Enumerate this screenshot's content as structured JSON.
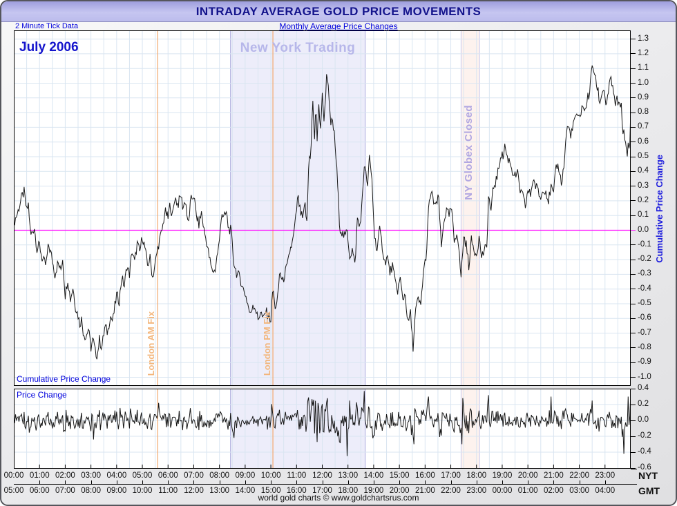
{
  "window": {
    "title": "INTRADAY AVERAGE GOLD PRICE MOVEMENTS",
    "tick_note": "2 Minute Tick Data",
    "subtitle": "Monthly Average Price Changes",
    "footer": "world gold charts © www.goldchartsrus.com"
  },
  "labels": {
    "month": "July 2006",
    "ny_trading": "New York Trading",
    "globex_closed": "NY Globex Closed",
    "london_am_fix": "London AM Fix",
    "london_pm_fix": "London PM Fix",
    "nyt": "NYT",
    "gmt": "GMT"
  },
  "colors": {
    "navy_title": "#14148c",
    "accent_blue": "#0000dd",
    "magenta_zero": "#ff00ff",
    "orange_fix": "#f2a96e",
    "band_lavender": "#ededfa",
    "band_lavender_border": "#a9a9dd",
    "band_pink": "#fdf2ee",
    "band_pink_border": "#c9c9ee",
    "grid": "#d9e5f1",
    "series": "#161616"
  },
  "chart_data": {
    "type": "line",
    "title": "INTRADAY AVERAGE GOLD PRICE MOVEMENTS",
    "subtitle": "Monthly Average Price Changes",
    "month": "July 2006",
    "tick_minutes": 2,
    "noise_amplitude": 0.035,
    "x_axis": {
      "range_hours": [
        0,
        24
      ],
      "grid_interval_minutes": 30,
      "tick_interval_minutes": 60,
      "labels_nyt": [
        "00:00",
        "01:00",
        "02:00",
        "03:00",
        "04:00",
        "05:00",
        "06:00",
        "07:00",
        "08:00",
        "09:00",
        "10:00",
        "11:00",
        "12:00",
        "13:00",
        "14:00",
        "15:00",
        "16:00",
        "17:00",
        "18:00",
        "19:00",
        "20:00",
        "21:00",
        "22:00",
        "23:00"
      ],
      "labels_gmt": [
        "05:00",
        "06:00",
        "07:00",
        "08:00",
        "09:00",
        "10:00",
        "11:00",
        "12:00",
        "13:00",
        "14:00",
        "15:00",
        "16:00",
        "17:00",
        "18:00",
        "19:00",
        "20:00",
        "21:00",
        "22:00",
        "23:00",
        "00:00",
        "01:00",
        "02:00",
        "03:00",
        "04:00"
      ]
    },
    "annotations": {
      "ny_trading_hours": [
        8.43,
        13.67
      ],
      "globex_closed_hours": [
        17.4,
        18.12
      ],
      "london_am_fix_hour": 5.6,
      "london_pm_fix_hour": 10.08
    },
    "upper_panel": {
      "name": "Cumulative Price Change",
      "ylim": [
        -1.06,
        1.36
      ],
      "yticks": [
        1.3,
        1.2,
        1.1,
        1.0,
        0.9,
        0.8,
        0.7,
        0.6,
        0.5,
        0.4,
        0.3,
        0.2,
        0.1,
        0.0,
        -0.1,
        -0.2,
        -0.3,
        -0.4,
        -0.5,
        -0.6,
        -0.7,
        -0.8,
        -0.9,
        -1.0
      ],
      "zero_line": 0.0,
      "keypoints": [
        [
          0,
          0.05
        ],
        [
          0.15,
          0.12
        ],
        [
          0.3,
          0.22
        ],
        [
          0.4,
          0.26
        ],
        [
          0.5,
          0.13
        ],
        [
          0.57,
          0.18
        ],
        [
          0.65,
          -0.04
        ],
        [
          0.8,
          0.02
        ],
        [
          0.9,
          -0.13
        ],
        [
          1.0,
          -0.1
        ],
        [
          1.1,
          -0.19
        ],
        [
          1.25,
          -0.24
        ],
        [
          1.35,
          -0.1
        ],
        [
          1.45,
          -0.16
        ],
        [
          1.6,
          -0.3
        ],
        [
          1.72,
          -0.22
        ],
        [
          1.82,
          -0.28
        ],
        [
          1.9,
          -0.19
        ],
        [
          2.0,
          -0.44
        ],
        [
          2.1,
          -0.33
        ],
        [
          2.2,
          -0.47
        ],
        [
          2.3,
          -0.39
        ],
        [
          2.4,
          -0.52
        ],
        [
          2.5,
          -0.58
        ],
        [
          2.57,
          -0.64
        ],
        [
          2.63,
          -0.6
        ],
        [
          2.7,
          -0.69
        ],
        [
          2.8,
          -0.73
        ],
        [
          2.9,
          -0.67
        ],
        [
          3.0,
          -0.8
        ],
        [
          3.08,
          -0.74
        ],
        [
          3.17,
          -0.83
        ],
        [
          3.25,
          -0.85
        ],
        [
          3.33,
          -0.74
        ],
        [
          3.42,
          -0.8
        ],
        [
          3.55,
          -0.65
        ],
        [
          3.65,
          -0.7
        ],
        [
          3.75,
          -0.58
        ],
        [
          3.85,
          -0.62
        ],
        [
          3.93,
          -0.52
        ],
        [
          4.0,
          -0.44
        ],
        [
          4.1,
          -0.48
        ],
        [
          4.2,
          -0.32
        ],
        [
          4.3,
          -0.38
        ],
        [
          4.4,
          -0.24
        ],
        [
          4.5,
          -0.3
        ],
        [
          4.6,
          -0.14
        ],
        [
          4.7,
          -0.22
        ],
        [
          4.8,
          -0.09
        ],
        [
          4.9,
          -0.15
        ],
        [
          5.0,
          -0.04
        ],
        [
          5.1,
          -0.12
        ],
        [
          5.2,
          -0.24
        ],
        [
          5.3,
          -0.19
        ],
        [
          5.4,
          -0.32
        ],
        [
          5.5,
          -0.23
        ],
        [
          5.6,
          -0.12
        ],
        [
          5.7,
          -0.05
        ],
        [
          5.78,
          0.01
        ],
        [
          5.88,
          0.13
        ],
        [
          6.0,
          0.08
        ],
        [
          6.08,
          0.18
        ],
        [
          6.17,
          0.09
        ],
        [
          6.27,
          0.23
        ],
        [
          6.38,
          0.17
        ],
        [
          6.5,
          0.24
        ],
        [
          6.58,
          0.15
        ],
        [
          6.68,
          0.21
        ],
        [
          6.78,
          0.02
        ],
        [
          6.88,
          0.2
        ],
        [
          7.0,
          0.24
        ],
        [
          7.1,
          0.1
        ],
        [
          7.2,
          0.04
        ],
        [
          7.3,
          0.12
        ],
        [
          7.4,
          0.0
        ],
        [
          7.5,
          -0.08
        ],
        [
          7.6,
          -0.18
        ],
        [
          7.7,
          -0.27
        ],
        [
          7.82,
          -0.28
        ],
        [
          7.92,
          -0.16
        ],
        [
          8.0,
          -0.08
        ],
        [
          8.08,
          0.13
        ],
        [
          8.17,
          0.08
        ],
        [
          8.27,
          0.12
        ],
        [
          8.35,
          0.01
        ],
        [
          8.45,
          0.0
        ],
        [
          8.55,
          -0.21
        ],
        [
          8.68,
          -0.3
        ],
        [
          8.8,
          -0.32
        ],
        [
          8.9,
          -0.39
        ],
        [
          9.0,
          -0.43
        ],
        [
          9.1,
          -0.5
        ],
        [
          9.2,
          -0.58
        ],
        [
          9.3,
          -0.5
        ],
        [
          9.4,
          -0.53
        ],
        [
          9.5,
          -0.61
        ],
        [
          9.6,
          -0.55
        ],
        [
          9.7,
          -0.61
        ],
        [
          9.8,
          -0.55
        ],
        [
          9.9,
          -0.58
        ],
        [
          10.0,
          -0.61
        ],
        [
          10.08,
          -0.38
        ],
        [
          10.15,
          -0.52
        ],
        [
          10.25,
          -0.5
        ],
        [
          10.35,
          -0.27
        ],
        [
          10.45,
          -0.36
        ],
        [
          10.55,
          -0.29
        ],
        [
          10.65,
          -0.24
        ],
        [
          10.75,
          -0.13
        ],
        [
          10.85,
          -0.08
        ],
        [
          10.95,
          0.05
        ],
        [
          11.05,
          0.23
        ],
        [
          11.15,
          0.12
        ],
        [
          11.25,
          0.07
        ],
        [
          11.33,
          0.18
        ],
        [
          11.4,
          0.04
        ],
        [
          11.48,
          0.49
        ],
        [
          11.55,
          0.52
        ],
        [
          11.63,
          0.88
        ],
        [
          11.7,
          0.6
        ],
        [
          11.75,
          0.89
        ],
        [
          11.8,
          0.61
        ],
        [
          11.87,
          0.85
        ],
        [
          11.93,
          0.69
        ],
        [
          12.0,
          0.91
        ],
        [
          12.08,
          0.74
        ],
        [
          12.18,
          1.11
        ],
        [
          12.25,
          0.91
        ],
        [
          12.32,
          0.72
        ],
        [
          12.4,
          0.74
        ],
        [
          12.48,
          0.63
        ],
        [
          12.58,
          0.37
        ],
        [
          12.68,
          0.02
        ],
        [
          12.78,
          -0.02
        ],
        [
          12.88,
          -0.05
        ],
        [
          12.97,
          0.0
        ],
        [
          13.07,
          -0.18
        ],
        [
          13.17,
          -0.13
        ],
        [
          13.27,
          -0.24
        ],
        [
          13.37,
          0.09
        ],
        [
          13.45,
          0.01
        ],
        [
          13.55,
          0.18
        ],
        [
          13.65,
          0.49
        ],
        [
          13.75,
          0.27
        ],
        [
          13.83,
          0.49
        ],
        [
          13.93,
          0.35
        ],
        [
          14.03,
          -0.04
        ],
        [
          14.13,
          -0.13
        ],
        [
          14.23,
          0.0
        ],
        [
          14.33,
          -0.1
        ],
        [
          14.43,
          -0.22
        ],
        [
          14.53,
          -0.18
        ],
        [
          14.63,
          -0.29
        ],
        [
          14.73,
          -0.24
        ],
        [
          14.83,
          -0.35
        ],
        [
          14.93,
          -0.41
        ],
        [
          15.03,
          -0.33
        ],
        [
          15.13,
          -0.47
        ],
        [
          15.23,
          -0.43
        ],
        [
          15.33,
          -0.64
        ],
        [
          15.43,
          -0.56
        ],
        [
          15.53,
          -0.8
        ],
        [
          15.63,
          -0.55
        ],
        [
          15.73,
          -0.47
        ],
        [
          15.83,
          -0.52
        ],
        [
          15.93,
          -0.29
        ],
        [
          16.0,
          -0.22
        ],
        [
          16.07,
          -0.12
        ],
        [
          16.13,
          0.13
        ],
        [
          16.22,
          0.26
        ],
        [
          16.33,
          0.2
        ],
        [
          16.43,
          0.16
        ],
        [
          16.53,
          0.23
        ],
        [
          16.63,
          -0.13
        ],
        [
          16.73,
          0.07
        ],
        [
          16.83,
          0.13
        ],
        [
          16.93,
          0.1
        ],
        [
          17.03,
          0.15
        ],
        [
          17.13,
          -0.08
        ],
        [
          17.25,
          0.0
        ],
        [
          17.4,
          -0.32
        ],
        [
          17.5,
          -0.04
        ],
        [
          17.6,
          -0.1
        ],
        [
          17.7,
          -0.24
        ],
        [
          17.8,
          -0.07
        ],
        [
          17.9,
          -0.13
        ],
        [
          18.0,
          -0.16
        ],
        [
          18.1,
          -0.05
        ],
        [
          18.2,
          -0.18
        ],
        [
          18.3,
          -0.14
        ],
        [
          18.4,
          -0.12
        ],
        [
          18.47,
          0.24
        ],
        [
          18.57,
          0.12
        ],
        [
          18.65,
          0.29
        ],
        [
          18.75,
          0.33
        ],
        [
          18.85,
          0.4
        ],
        [
          18.95,
          0.53
        ],
        [
          19.03,
          0.49
        ],
        [
          19.1,
          0.58
        ],
        [
          19.2,
          0.49
        ],
        [
          19.3,
          0.47
        ],
        [
          19.4,
          0.4
        ],
        [
          19.5,
          0.37
        ],
        [
          19.6,
          0.38
        ],
        [
          19.7,
          0.27
        ],
        [
          19.8,
          0.23
        ],
        [
          19.9,
          0.16
        ],
        [
          20.0,
          0.27
        ],
        [
          20.1,
          0.24
        ],
        [
          20.2,
          0.35
        ],
        [
          20.3,
          0.3
        ],
        [
          20.4,
          0.27
        ],
        [
          20.5,
          0.21
        ],
        [
          20.6,
          0.29
        ],
        [
          20.7,
          0.27
        ],
        [
          20.8,
          0.2
        ],
        [
          20.9,
          0.29
        ],
        [
          21.0,
          0.24
        ],
        [
          21.1,
          0.44
        ],
        [
          21.2,
          0.43
        ],
        [
          21.3,
          0.32
        ],
        [
          21.4,
          0.43
        ],
        [
          21.5,
          0.67
        ],
        [
          21.58,
          0.71
        ],
        [
          21.65,
          0.65
        ],
        [
          21.75,
          0.69
        ],
        [
          21.85,
          0.79
        ],
        [
          21.93,
          0.75
        ],
        [
          22.0,
          0.77
        ],
        [
          22.07,
          0.81
        ],
        [
          22.13,
          0.86
        ],
        [
          22.2,
          0.79
        ],
        [
          22.3,
          0.89
        ],
        [
          22.4,
          0.93
        ],
        [
          22.5,
          1.13
        ],
        [
          22.58,
          1.08
        ],
        [
          22.65,
          1.0
        ],
        [
          22.73,
          0.95
        ],
        [
          22.8,
          0.86
        ],
        [
          22.88,
          0.94
        ],
        [
          22.95,
          0.97
        ],
        [
          23.03,
          0.86
        ],
        [
          23.13,
          0.91
        ],
        [
          23.22,
          1.06
        ],
        [
          23.32,
          0.93
        ],
        [
          23.4,
          0.86
        ],
        [
          23.48,
          0.89
        ],
        [
          23.57,
          0.83
        ],
        [
          23.63,
          0.85
        ],
        [
          23.7,
          0.67
        ],
        [
          23.78,
          0.63
        ],
        [
          23.83,
          0.55
        ],
        [
          23.88,
          0.53
        ],
        [
          23.92,
          0.61
        ],
        [
          23.95,
          0.44
        ],
        [
          24.0,
          0.83
        ]
      ]
    },
    "lower_panel": {
      "name": "Price Change",
      "ylim": [
        -0.6,
        0.4
      ],
      "yticks": [
        0.4,
        0.2,
        0.0,
        -0.2,
        -0.4,
        -0.6
      ],
      "gridlines": [
        0.2,
        0.0,
        -0.2,
        -0.4
      ],
      "derivation": "per-tick first difference of cumulative series",
      "diff_gain": 1.5,
      "clamp": [
        -0.5,
        0.4
      ],
      "spikes": [
        [
          3.1,
          -0.24
        ],
        [
          5.62,
          0.22
        ],
        [
          8.55,
          -0.22
        ],
        [
          11.65,
          0.26
        ],
        [
          12.2,
          0.28
        ],
        [
          12.7,
          -0.28
        ],
        [
          12.97,
          -0.45
        ],
        [
          13.05,
          0.25
        ],
        [
          13.62,
          0.37
        ],
        [
          15.55,
          -0.3
        ],
        [
          16.15,
          0.3
        ],
        [
          17.42,
          -0.3
        ],
        [
          17.47,
          0.28
        ],
        [
          20.9,
          0.3
        ],
        [
          22.5,
          0.25
        ],
        [
          23.72,
          -0.42
        ],
        [
          23.9,
          0.3
        ]
      ]
    }
  }
}
